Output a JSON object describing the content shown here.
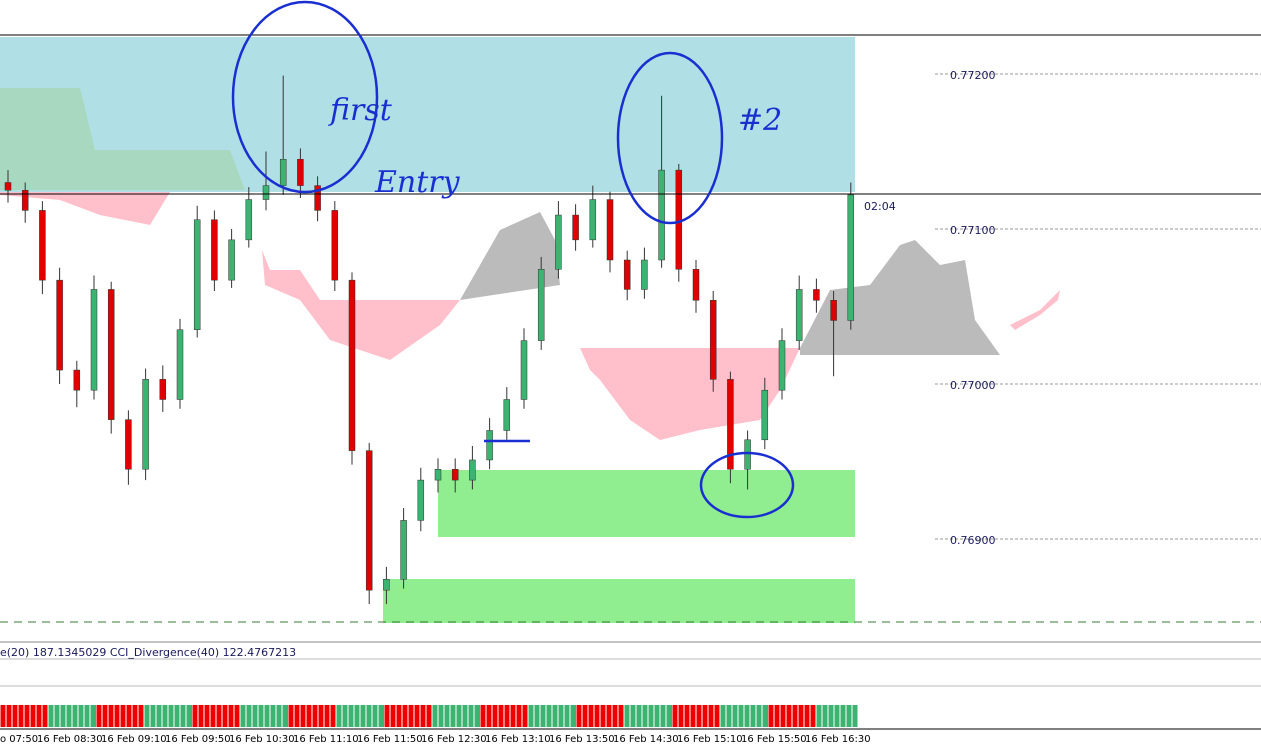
{
  "chart": {
    "open": [
      0.7713,
      0.77125,
      0.77112,
      0.77067,
      0.77009,
      0.76996,
      0.77061,
      0.76977,
      0.76945,
      0.77003,
      0.7699,
      0.77035,
      0.77106,
      0.77067,
      0.77093,
      0.77119,
      0.77128,
      0.77145,
      0.77128,
      0.77112,
      0.77067,
      0.76957,
      0.76867,
      0.76874,
      0.76912,
      0.76938,
      0.76945,
      0.76938,
      0.76951,
      0.7697,
      0.7699,
      0.77028,
      0.77074,
      0.77109,
      0.77093,
      0.77119,
      0.7708,
      0.77061,
      0.7708,
      0.77138,
      0.77074,
      0.77054,
      0.77003,
      0.76945,
      0.76964,
      0.76996,
      0.77028,
      0.77061,
      0.77054,
      0.77041
    ],
    "high": [
      0.77138,
      0.7713,
      0.77118,
      0.77075,
      0.77015,
      0.7707,
      0.77066,
      0.76983,
      0.7701,
      0.77012,
      0.77042,
      0.77115,
      0.77112,
      0.771,
      0.77127,
      0.7715,
      0.77199,
      0.77152,
      0.77134,
      0.77118,
      0.77072,
      0.76962,
      0.76882,
      0.7692,
      0.76946,
      0.76952,
      0.76952,
      0.7696,
      0.76978,
      0.76998,
      0.77036,
      0.77082,
      0.77118,
      0.77116,
      0.77128,
      0.77124,
      0.77086,
      0.77088,
      0.77186,
      0.77142,
      0.7708,
      0.7706,
      0.77008,
      0.7697,
      0.77004,
      0.77036,
      0.7707,
      0.77068,
      0.7706,
      0.7713
    ],
    "low": [
      0.77117,
      0.77104,
      0.77058,
      0.77,
      0.76985,
      0.7699,
      0.76968,
      0.76935,
      0.76938,
      0.76982,
      0.76984,
      0.7703,
      0.7706,
      0.77062,
      0.77088,
      0.77112,
      0.77122,
      0.7712,
      0.77105,
      0.7706,
      0.76948,
      0.76858,
      0.76858,
      0.76868,
      0.76905,
      0.7693,
      0.7693,
      0.76932,
      0.76945,
      0.76964,
      0.76984,
      0.77022,
      0.77068,
      0.77086,
      0.77088,
      0.77072,
      0.77054,
      0.77055,
      0.77075,
      0.77066,
      0.77046,
      0.76995,
      0.76936,
      0.76932,
      0.76958,
      0.7699,
      0.77022,
      0.77046,
      0.77005,
      0.77035
    ],
    "close": [
      0.77125,
      0.77112,
      0.77067,
      0.77009,
      0.76996,
      0.77061,
      0.76977,
      0.76945,
      0.77003,
      0.7699,
      0.77035,
      0.77106,
      0.77067,
      0.77093,
      0.77119,
      0.77128,
      0.77145,
      0.77128,
      0.77112,
      0.77067,
      0.76957,
      0.76867,
      0.76874,
      0.76912,
      0.76938,
      0.76945,
      0.76938,
      0.76951,
      0.7697,
      0.7699,
      0.77028,
      0.77074,
      0.77109,
      0.77093,
      0.77119,
      0.7708,
      0.77061,
      0.7708,
      0.77138,
      0.77074,
      0.77054,
      0.77003,
      0.76945,
      0.76964,
      0.76996,
      0.77028,
      0.77061,
      0.77054,
      0.77041,
      0.77122
    ]
  },
  "price_axis": {
    "ticks": [
      {
        "value": 0.772,
        "label": "0.77200"
      },
      {
        "value": 0.771,
        "label": "0.77100"
      },
      {
        "value": 0.77,
        "label": "0.77000"
      },
      {
        "value": 0.769,
        "label": "0.76900"
      }
    ]
  },
  "timer": "02:04",
  "indicator_label": "e(20) 187.1345029  CCI_Divergence(40) 122.4767213",
  "time_axis": [
    "o 07:50",
    "16 Feb 08:30",
    "16 Feb 09:10",
    "16 Feb 09:50",
    "16 Feb 10:30",
    "16 Feb 11:10",
    "16 Feb 11:50",
    "16 Feb 12:30",
    "16 Feb 13:10",
    "16 Feb 13:50",
    "16 Feb 14:30",
    "16 Feb 15:10",
    "16 Feb 15:50",
    "16 Feb 16:30"
  ],
  "annotations": [
    "first",
    "Entry",
    "#2"
  ]
}
